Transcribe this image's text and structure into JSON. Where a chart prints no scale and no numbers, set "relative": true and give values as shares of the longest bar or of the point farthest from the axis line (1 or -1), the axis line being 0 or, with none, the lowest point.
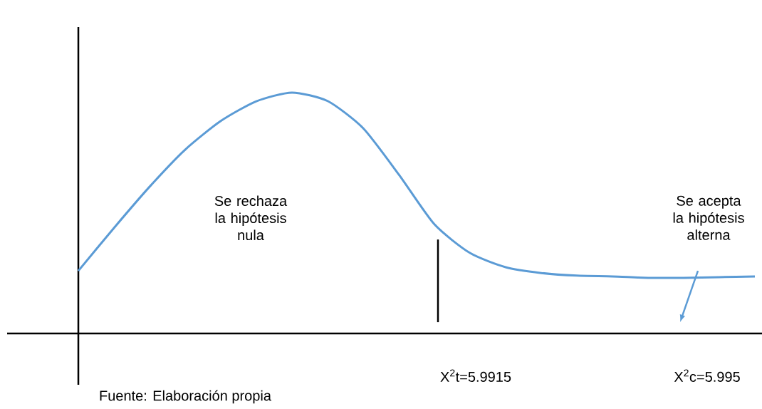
{
  "chart_data": {
    "type": "line",
    "categories": [
      null,
      null,
      null,
      null,
      null,
      null,
      null,
      null,
      null,
      null,
      null,
      null,
      null,
      null,
      null,
      null,
      null,
      null,
      null,
      null
    ],
    "values": [
      0.26,
      0.438,
      0.609,
      0.763,
      0.882,
      0.964,
      1,
      0.965,
      0.852,
      0.66,
      0.453,
      0.334,
      0.275,
      0.251,
      0.24,
      0.237,
      0.231,
      0.231,
      0.234,
      0.237
    ],
    "color": "#5b9bd5",
    "relative": true,
    "annotations": [
      "Se rechaza la hipótesis nula",
      "Se acepta la hipótesis alterna",
      "X$^{2}$t=5.9915",
      "X$^{2}$c=5.995",
      "Fuente: Elaboración propia"
    ]
  }
}
